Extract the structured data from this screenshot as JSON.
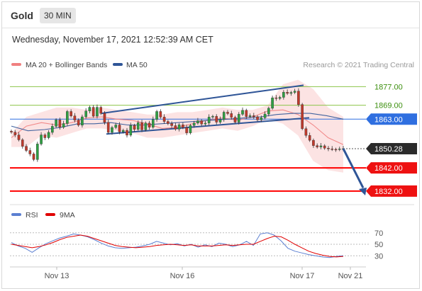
{
  "header": {
    "instrument": "Gold",
    "timeframe": "30 MIN"
  },
  "datetime": "Wednesday, November 17, 2021 12:52:39 AM CET",
  "legend": {
    "ma_bb": "MA 20 + Bollinger Bands",
    "ma50": "MA 50",
    "credit": "Research © 2021 Trading Central"
  },
  "rsi_legend": {
    "rsi": "RSI",
    "ma9": "9MA"
  },
  "colors": {
    "bollinger": "#f08080",
    "ma50": "#2f5597",
    "resistance": "#8dc44a",
    "support": "#ff0000",
    "trendline": "#2f5597",
    "rsi": "#5b7fd1",
    "rsi_ma": "#e00000",
    "candle_up": "#2ea043",
    "candle_down": "#c0392b"
  },
  "chart_data": [
    {
      "type": "line",
      "title": "",
      "price_range": [
        1828,
        1882
      ],
      "x_labels": [
        "Nov 13",
        "Nov 16",
        "Nov 17",
        "Nov 21"
      ],
      "levels": [
        {
          "value": 1877.0,
          "label": "1877.00",
          "kind": "resistance"
        },
        {
          "value": 1869.0,
          "label": "1869.00",
          "kind": "resistance"
        },
        {
          "value": 1863.0,
          "label": "1863.00",
          "kind": "pivot"
        },
        {
          "value": 1850.28,
          "label": "1850.28",
          "kind": "last"
        },
        {
          "value": 1842.0,
          "label": "1842.00",
          "kind": "support"
        },
        {
          "value": 1832.0,
          "label": "1832.00",
          "kind": "support"
        }
      ],
      "series": [
        {
          "name": "Price",
          "values": [
            1857.4,
            1856.2,
            1854.1,
            1851.3,
            1849.5,
            1848.0,
            1845.6,
            1852.3,
            1856.2,
            1855.0,
            1857.3,
            1859.9,
            1862.7,
            1859.5,
            1861.1,
            1866.3,
            1864.4,
            1862.6,
            1860.4,
            1864.0,
            1866.5,
            1868.1,
            1864.3,
            1868.1,
            1865.5,
            1861.6,
            1857.3,
            1859.4,
            1860.5,
            1857.5,
            1858.2,
            1856.1,
            1860.3,
            1858.6,
            1861.5,
            1858.4,
            1861.3,
            1859.5,
            1862.9,
            1866.3,
            1863.9,
            1862.0,
            1861.1,
            1860.2,
            1858.7,
            1860.6,
            1859.4,
            1857.1,
            1860.3,
            1861.3,
            1862.3,
            1860.9,
            1861.3,
            1863.9,
            1864.2,
            1861.7,
            1862.9,
            1866.0,
            1865.4,
            1863.8,
            1861.7,
            1865.1,
            1866.8,
            1864.1,
            1864.5,
            1864.0,
            1862.7,
            1863.6,
            1865.2,
            1867.7,
            1872.2,
            1871.9,
            1872.4,
            1874.6,
            1874.1,
            1874.5,
            1875.1,
            1869.3,
            1858.9,
            1856.0,
            1853.9,
            1851.6,
            1851.0,
            1851.5,
            1850.5,
            1850.2,
            1850.0,
            1849.9,
            1850.2,
            1850.28
          ]
        },
        {
          "name": "MA 20",
          "values": [
            1855.0,
            1860.0,
            1861.5,
            1860.5,
            1861.5,
            1863.5,
            1864.0,
            1863.0,
            1862.5,
            1861.0,
            1859.0,
            1859.5,
            1861.0,
            1862.5,
            1863.5,
            1862.5,
            1864.0,
            1866.5,
            1867.0,
            1865.0,
            1860.5,
            1855.0,
            1852.0
          ]
        },
        {
          "name": "MA 50",
          "values": [
            1860.0,
            1858.0,
            1858.5,
            1859.5,
            1861.0,
            1861.0,
            1861.5,
            1860.5,
            1860.5,
            1861.0,
            1861.5,
            1862.0,
            1862.5,
            1863.0,
            1863.5,
            1864.0,
            1865.0,
            1865.5,
            1865.5,
            1864.5,
            1863.0
          ]
        }
      ],
      "bollinger_upper": [
        1857,
        1864,
        1866,
        1868,
        1868,
        1867,
        1868,
        1867,
        1866,
        1865,
        1865,
        1866,
        1866,
        1867,
        1868,
        1867,
        1867,
        1869,
        1878,
        1880,
        1876,
        1868,
        1864
      ],
      "bollinger_lower": [
        1851,
        1851,
        1856,
        1855,
        1857,
        1859,
        1859,
        1858,
        1857,
        1855,
        1855,
        1856,
        1857,
        1858,
        1859,
        1858,
        1860,
        1863,
        1861,
        1856,
        1845,
        1841,
        1840
      ]
    },
    {
      "type": "line",
      "title": "",
      "ylim": [
        18,
        82
      ],
      "y_ticks": [
        70,
        50,
        30
      ],
      "series": [
        {
          "name": "RSI",
          "values": [
            53,
            47,
            43,
            36,
            44,
            51,
            56,
            61,
            64,
            68,
            66,
            63,
            58,
            52,
            47,
            44,
            43,
            44,
            45,
            47,
            50,
            55,
            52,
            49,
            51,
            47,
            50,
            45,
            49,
            46,
            52,
            50,
            46,
            49,
            55,
            48,
            68,
            70,
            66,
            56,
            43,
            38,
            35,
            32,
            30,
            28,
            27,
            29,
            30
          ]
        },
        {
          "name": "9MA",
          "values": [
            50,
            48,
            46,
            44,
            46,
            49,
            53,
            58,
            62,
            64,
            66,
            64,
            60,
            56,
            52,
            48,
            46,
            45,
            44,
            45,
            46,
            48,
            49,
            50,
            49,
            48,
            49,
            47,
            47,
            47,
            48,
            49,
            48,
            49,
            50,
            50,
            55,
            60,
            64,
            63,
            57,
            50,
            44,
            38,
            34,
            31,
            29,
            28,
            29
          ]
        }
      ]
    }
  ]
}
